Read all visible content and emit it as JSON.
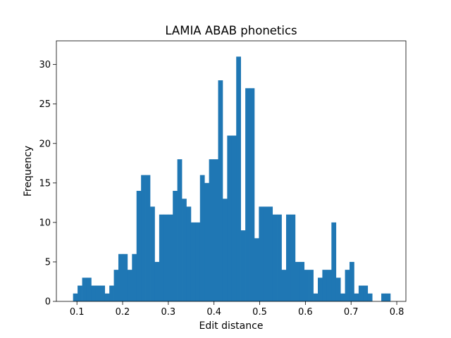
{
  "chart_data": {
    "type": "bar",
    "title": "LAMIA ABAB phonetics",
    "xlabel": "Edit distance",
    "ylabel": "Frequency",
    "xlim": [
      0.055,
      0.82
    ],
    "ylim": [
      0,
      33
    ],
    "bar_color": "#1f77b4",
    "x_ticks": [
      0.1,
      0.2,
      0.3,
      0.4,
      0.5,
      0.6,
      0.7,
      0.8
    ],
    "x_tick_labels": [
      "0.1",
      "0.2",
      "0.3",
      "0.4",
      "0.5",
      "0.6",
      "0.7",
      "0.8"
    ],
    "y_ticks": [
      0,
      5,
      10,
      15,
      20,
      25,
      30
    ],
    "y_tick_labels": [
      "0",
      "5",
      "10",
      "15",
      "20",
      "25",
      "30"
    ],
    "bin_width": 0.01,
    "x": [
      0.0915,
      0.1014,
      0.1114,
      0.1213,
      0.1312,
      0.1411,
      0.151,
      0.161,
      0.1709,
      0.1808,
      0.1907,
      0.2006,
      0.2106,
      0.2205,
      0.2304,
      0.2403,
      0.2502,
      0.2602,
      0.2701,
      0.28,
      0.2899,
      0.2998,
      0.3098,
      0.3197,
      0.3296,
      0.3395,
      0.3494,
      0.3594,
      0.3693,
      0.3792,
      0.3891,
      0.399,
      0.409,
      0.4189,
      0.4288,
      0.4387,
      0.4486,
      0.4586,
      0.4685,
      0.4784,
      0.4883,
      0.4982,
      0.5082,
      0.5181,
      0.528,
      0.5379,
      0.5478,
      0.5578,
      0.5677,
      0.5776,
      0.5875,
      0.5974,
      0.6074,
      0.6173,
      0.6272,
      0.6371,
      0.647,
      0.657,
      0.6669,
      0.6768,
      0.6867,
      0.6966,
      0.7066,
      0.7165,
      0.7264,
      0.7363,
      0.7462,
      0.7562,
      0.7661,
      0.776
    ],
    "values": [
      1,
      2,
      3,
      3,
      2,
      2,
      2,
      1,
      2,
      4,
      6,
      6,
      4,
      6,
      14,
      16,
      16,
      12,
      5,
      11,
      11,
      11,
      14,
      18,
      13,
      12,
      10,
      10,
      16,
      15,
      18,
      18,
      28,
      13,
      21,
      21,
      31,
      9,
      27,
      27,
      8,
      12,
      12,
      12,
      11,
      11,
      4,
      11,
      11,
      5,
      5,
      4,
      4,
      1,
      3,
      4,
      4,
      10,
      3,
      1,
      4,
      5,
      1,
      2,
      2,
      1,
      0,
      0,
      1,
      1
    ]
  }
}
